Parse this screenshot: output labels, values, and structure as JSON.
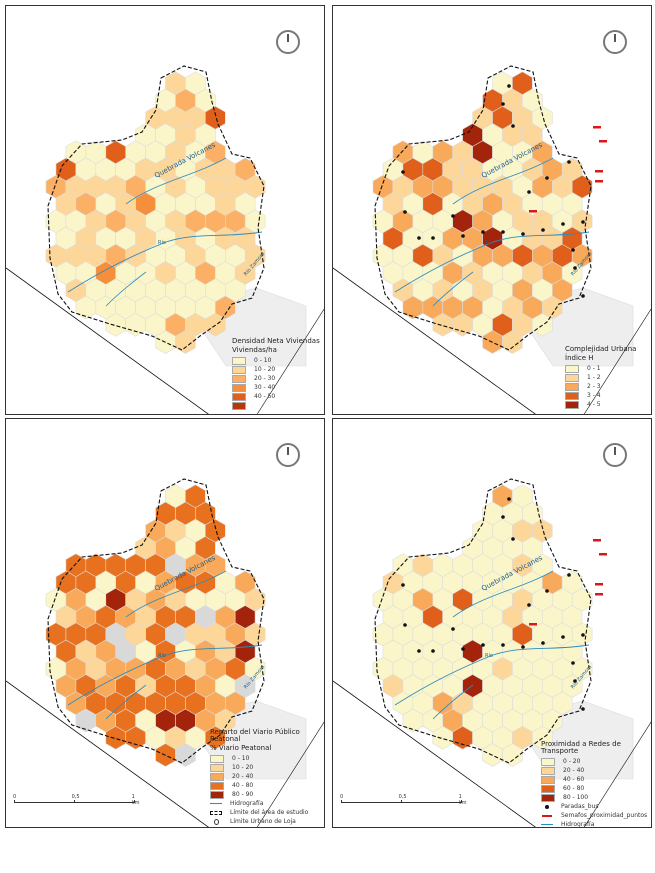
{
  "panels": [
    {
      "legend": {
        "title_lines": [
          "Densidad Neta Viviendas",
          "Viviendas/ha"
        ],
        "classes": [
          {
            "label": "0 - 10",
            "color": "#fbf6c9"
          },
          {
            "label": "10 - 20",
            "color": "#fdd69a"
          },
          {
            "label": "20 - 30",
            "color": "#fbb065"
          },
          {
            "label": "30 - 40",
            "color": "#f58f3c"
          },
          {
            "label": "40 - 50",
            "color": "#e0601b"
          },
          {
            "label": "",
            "color": "#b8360d"
          }
        ],
        "extras": []
      },
      "scale": null,
      "dark_hex": 9
    },
    {
      "legend": {
        "title_lines": [
          "Complejidad Urbana",
          "Índice H"
        ],
        "classes": [
          {
            "label": "0 - 1",
            "color": "#fbf6c9"
          },
          {
            "label": "1 - 2",
            "color": "#fdd69a"
          },
          {
            "label": "2 - 3",
            "color": "#f9a95a"
          },
          {
            "label": "3 - 4",
            "color": "#e0601b"
          },
          {
            "label": "4 - 5",
            "color": "#a3240a"
          }
        ],
        "extras": []
      },
      "scale": null,
      "dark_hex": 30
    },
    {
      "legend": {
        "title_lines": [
          "Reparto del Viario Público Peatonal",
          "% Viario Peatonal"
        ],
        "classes": [
          {
            "label": "0 - 10",
            "color": "#fbf6c9"
          },
          {
            "label": "10 - 20",
            "color": "#fdd69a"
          },
          {
            "label": "20 - 40",
            "color": "#f9a95a"
          },
          {
            "label": "40 - 80",
            "color": "#e8711f"
          },
          {
            "label": "80 - 90",
            "color": "#a3240a"
          }
        ],
        "extras": [
          {
            "symbol": "line",
            "label": "Hidrografía"
          },
          {
            "symbol": "dash",
            "label": "Límite del área de estudio"
          },
          {
            "symbol": "pin",
            "label": "Límite Urbano de Loja"
          }
        ]
      },
      "scale": {
        "labels": [
          "0",
          "0,5",
          "1 km"
        ]
      },
      "dark_hex": 55
    },
    {
      "legend": {
        "title_lines": [
          "Proximidad a Redes de Transporte"
        ],
        "classes": [
          {
            "label": "0 - 20",
            "color": "#fbf6c9"
          },
          {
            "label": "20 - 40",
            "color": "#fdd69a"
          },
          {
            "label": "40 - 60",
            "color": "#f9a95a"
          },
          {
            "label": "60 - 80",
            "color": "#e0601b"
          },
          {
            "label": "80 - 100",
            "color": "#a3240a"
          }
        ],
        "extras": [
          {
            "symbol": "dot",
            "label": "Paradas_bus"
          },
          {
            "symbol": "bar",
            "label": "Semafos_proximidad_puntos"
          },
          {
            "symbol": "line",
            "label": "Hidrografía"
          },
          {
            "symbol": "dash",
            "label": "Límite del área de estudio"
          },
          {
            "symbol": "pin",
            "label": "Límite Urbano de Loja"
          }
        ]
      },
      "scale": {
        "labels": [
          "0",
          "0,5",
          "1 km"
        ]
      },
      "dark_hex": 12
    }
  ],
  "map_labels": [
    "Quebrada Volcanes",
    "Río",
    "Río Zamora"
  ],
  "colors": {
    "boundary": "#111111",
    "river": "#2b8cbe",
    "hex_stroke": "#dcdcdc",
    "neutral_hex": "#d9d9d9",
    "road": "#111111",
    "bus_stop": "#111111",
    "traffic_light": "#d7191c"
  }
}
